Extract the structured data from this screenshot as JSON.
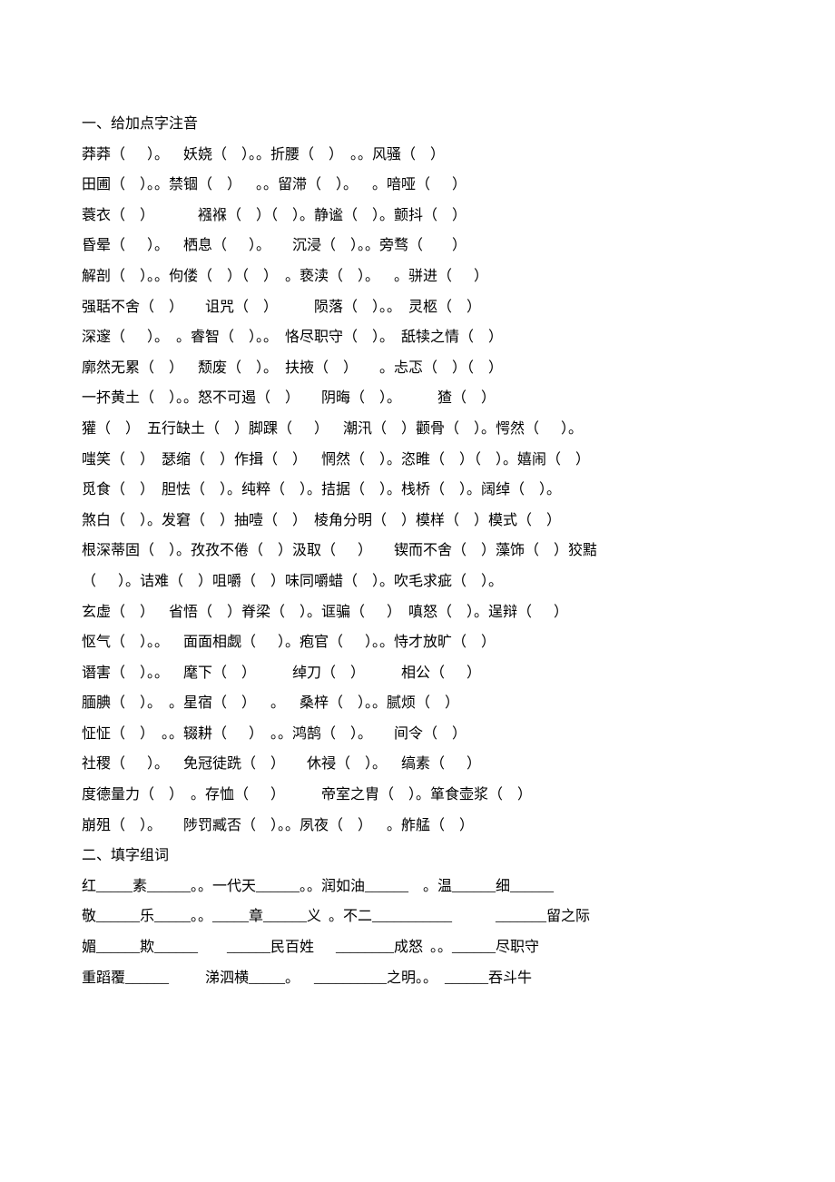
{
  "typography": {
    "font_family": "SimSun",
    "font_size_pt": 12,
    "line_height": 2.1,
    "text_color": "#000000",
    "background_color": "#ffffff"
  },
  "section1": {
    "heading": "一、给加点字注音",
    "lines": [
      "莽莽（      ）。    妖娆（    ）。。折腰（    ）  。。风骚（    ）",
      "田圃（    ）。。禁锢（    ）    。。留滞（    ）。    。喑哑（      ）",
      "蓑衣（    ）            襁褓（    ）（    ）。静谧（    ）。颤抖（    ）",
      "昏晕（      ）。    栖息（      ）。      沉浸（    ）。。旁骛（        ）",
      "解剖（    ）。。佝偻（    ）（    ）  。亵渎（    ）。    。骈进（      ）",
      "强聒不舍（    ）      诅咒（    ）          陨落（    ）。。  灵柩（    ）",
      "深邃（      ）。  。睿智（    ）。。  恪尽职守（    ）。  舐犊之情（    ）",
      "廓然无累（    ）    颓废（    ）。  扶掖（    ）      。忐忑（    ）（    ）",
      "一抔黄土（    ）。。怒不可遏（    ）      阴晦（    ）。          猹（    ）",
      "獾（    ）  五行缺土（    ）脚踝（      ）    潮汛（    ）颧骨（    ）。愕然（      ）。",
      "嗤笑（    ）  瑟缩（    ）作揖（    ）    惘然（    ）。恣睢（    ）（    ）。嬉闹（    ）",
      "觅食（    ）  胆怯（    ）。纯粹（    ）。拮据（    ）。栈桥（    ）。阔绰（    ）。",
      "煞白（    ）。发窘（    ）抽噎（    ）  棱角分明（    ）模样（    ）模式（    ）",
      "根深蒂固（    ）。孜孜不倦（    ）汲取（      ）      锲而不舍（    ）藻饰（    ）狡黠",
      "（      ）。诘难（    ）咀嚼（    ）味同嚼蜡（    ）。吹毛求疵（    ）。",
      "玄虚（    ）    省悟（    ）脊梁（    ）。诓骗（      ）  嗔怒（    ）。逞辩（      ）",
      "怄气（    ）。。    面面相觑（      ）。疱官（      ）。。恃才放旷（    ）",
      "谮害（    ）。。    麾下（    ）          绰刀（    ）          相公（      ）",
      "腼腆（    ）。  。星宿（    ）    。    桑梓（    ）。。腻烦（    ）",
      "怔怔（    ）  。。辍耕（      ）  。。鸿鹄（    ）。      间令（    ）",
      "社稷（      ）。    免冠徒跣（    ）      休祲（    ）。    缟素（      ）",
      "度德量力（    ）  。存恤（      ）          帝室之胄（    ）。箪食壶浆（    ）",
      "崩殂（    ）。      陟罚臧否（    ）。。夙夜（    ）    。舴艋（    ）"
    ]
  },
  "section2": {
    "heading": "二、填字组词",
    "lines": [
      "红_____素______。。一代天______。。润如油______    。温______细______",
      "敬______乐_____。。_____章______义  。不二___________            _______留之际",
      "媚______欺______        ______民百姓      ________成怒  。。______尽职守",
      "重蹈覆______          涕泗横_____。    __________之明。。  ______吞斗牛"
    ]
  }
}
